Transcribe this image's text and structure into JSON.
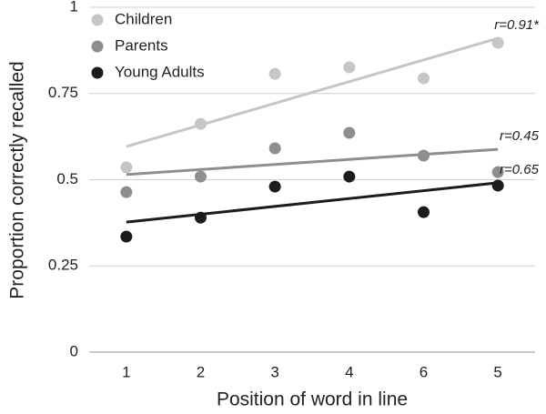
{
  "chart_data": {
    "type": "scatter",
    "x_label": "Position of word in line",
    "y_label": "Proportion correctly recalled",
    "categories": [
      "1",
      "2",
      "3",
      "4",
      "6",
      "5"
    ],
    "ylim": [
      0,
      1
    ],
    "yticks": [
      0,
      0.25,
      0.5,
      0.75,
      1
    ],
    "grid": true,
    "legend": "top-left",
    "series": [
      {
        "name": "Children",
        "color": "#c6c6c6",
        "values": [
          0.536,
          0.662,
          0.807,
          0.826,
          0.794,
          0.897
        ],
        "trend": [
          0.596,
          0.91
        ],
        "annotation": "r=0.91*"
      },
      {
        "name": "Parents",
        "color": "#8e8e8e",
        "values": [
          0.464,
          0.509,
          0.591,
          0.636,
          0.57,
          0.522
        ],
        "trend": [
          0.515,
          0.588
        ],
        "annotation": "r=0.45"
      },
      {
        "name": "Young Adults",
        "color": "#1c1c1c",
        "values": [
          0.335,
          0.39,
          0.48,
          0.509,
          0.406,
          0.483
        ],
        "trend": [
          0.377,
          0.491
        ],
        "annotation": "r=0.65"
      }
    ]
  }
}
